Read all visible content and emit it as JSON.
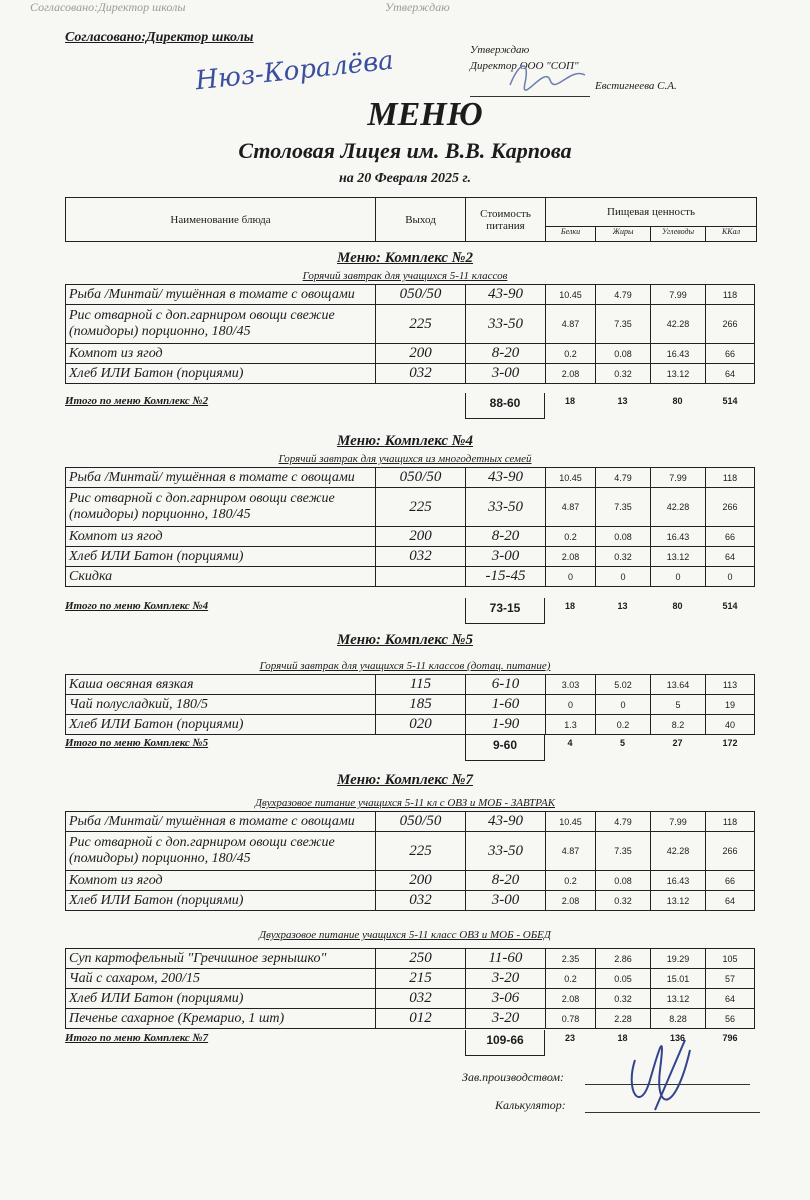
{
  "bleed": {
    "left": "Согласовано:Директор школы",
    "right": "Утверждаю"
  },
  "approval_left": "Согласовано:Директор школы",
  "approval_right": {
    "line1": "Утверждаю",
    "line2": "Директор ООО \"СОП\"",
    "name": "Евстигнеева С.А."
  },
  "signature_left": "Нюз-Коралёва",
  "title": "МЕНЮ",
  "subtitle": "Столовая Лицея им. В.В. Карпова",
  "date": "на 20 Февраля 2025 г.",
  "header": {
    "name": "Наименование блюда",
    "yield": "Выход",
    "cost": "Стоимость питания",
    "nutrition": "Пищевая ценность",
    "protein": "Белки",
    "fat": "Жиры",
    "carbs": "Углеводы",
    "kcal": "ККал"
  },
  "sections": [
    {
      "title": "Меню: Комплекс №2",
      "blocks": [
        {
          "subtitle": "Горячий завтрак для учащихся 5-11 классов",
          "rows": [
            [
              "Рыба /Минтай/ тушённая в томате с овощами",
              "050/50",
              "43-90",
              "10.45",
              "4.79",
              "7.99",
              "118"
            ],
            [
              "Рис отварной с доп.гарниром овощи свежие (помидоры) порционно, 180/45",
              "225",
              "33-50",
              "4.87",
              "7.35",
              "42.28",
              "266"
            ],
            [
              "Компот из ягод",
              "200",
              "8-20",
              "0.2",
              "0.08",
              "16.43",
              "66"
            ],
            [
              "Хлеб ИЛИ Батон (порциями)",
              "032",
              "3-00",
              "2.08",
              "0.32",
              "13.12",
              "64"
            ]
          ]
        }
      ],
      "total": {
        "label": "Итого по меню Комплекс №2",
        "cost": "88-60",
        "protein": "18",
        "fat": "13",
        "carbs": "80",
        "kcal": "514"
      }
    },
    {
      "title": "Меню: Комплекс №4",
      "blocks": [
        {
          "subtitle": "Горячий завтрак для учащихся из многодетных семей",
          "rows": [
            [
              "Рыба /Минтай/ тушённая в томате с овощами",
              "050/50",
              "43-90",
              "10.45",
              "4.79",
              "7.99",
              "118"
            ],
            [
              "Рис отварной с доп.гарниром овощи свежие (помидоры) порционно, 180/45",
              "225",
              "33-50",
              "4.87",
              "7.35",
              "42.28",
              "266"
            ],
            [
              "Компот из ягод",
              "200",
              "8-20",
              "0.2",
              "0.08",
              "16.43",
              "66"
            ],
            [
              "Хлеб ИЛИ Батон (порциями)",
              "032",
              "3-00",
              "2.08",
              "0.32",
              "13.12",
              "64"
            ],
            [
              "Скидка",
              "",
              "-15-45",
              "0",
              "0",
              "0",
              "0"
            ]
          ]
        }
      ],
      "total": {
        "label": "Итого по меню Комплекс №4",
        "cost": "73-15",
        "protein": "18",
        "fat": "13",
        "carbs": "80",
        "kcal": "514"
      }
    },
    {
      "title": "Меню: Комплекс №5",
      "blocks": [
        {
          "subtitle": "Горячий завтрак для учащихся 5-11 классов (дотац. питание)",
          "rows": [
            [
              "Каша овсяная вязкая",
              "115",
              "6-10",
              "3.03",
              "5.02",
              "13.64",
              "113"
            ],
            [
              "Чай полусладкий, 180/5",
              "185",
              "1-60",
              "0",
              "0",
              "5",
              "19"
            ],
            [
              "Хлеб ИЛИ Батон (порциями)",
              "020",
              "1-90",
              "1.3",
              "0.2",
              "8.2",
              "40"
            ]
          ]
        }
      ],
      "total": {
        "label": "Итого по меню Комплекс №5",
        "cost": "9-60",
        "protein": "4",
        "fat": "5",
        "carbs": "27",
        "kcal": "172"
      }
    },
    {
      "title": "Меню: Комплекс №7",
      "blocks": [
        {
          "subtitle": "Двухразовое питание учащихся 5-11 кл с ОВЗ и МОБ - ЗАВТРАК",
          "rows": [
            [
              "Рыба /Минтай/ тушённая в томате с овощами",
              "050/50",
              "43-90",
              "10.45",
              "4.79",
              "7.99",
              "118"
            ],
            [
              "Рис отварной с доп.гарниром овощи свежие (помидоры) порционно, 180/45",
              "225",
              "33-50",
              "4.87",
              "7.35",
              "42.28",
              "266"
            ],
            [
              "Компот из ягод",
              "200",
              "8-20",
              "0.2",
              "0.08",
              "16.43",
              "66"
            ],
            [
              "Хлеб ИЛИ Батон (порциями)",
              "032",
              "3-00",
              "2.08",
              "0.32",
              "13.12",
              "64"
            ]
          ]
        },
        {
          "subtitle": "Двухразовое питание учащихся 5-11 класс ОВЗ и МОБ - ОБЕД",
          "rows": [
            [
              "Суп картофельный \"Гречишное зернышко\"",
              "250",
              "11-60",
              "2.35",
              "2.86",
              "19.29",
              "105"
            ],
            [
              "Чай с сахаром, 200/15",
              "215",
              "3-20",
              "0.2",
              "0.05",
              "15.01",
              "57"
            ],
            [
              "Хлеб ИЛИ Батон (порциями)",
              "032",
              "3-06",
              "2.08",
              "0.32",
              "13.12",
              "64"
            ],
            [
              "Печенье сахарное (Кремарио, 1 шт)",
              "012",
              "3-20",
              "0.78",
              "2.28",
              "8.28",
              "56"
            ]
          ]
        }
      ],
      "total": {
        "label": "Итого по меню Комплекс №7",
        "cost": "109-66",
        "protein": "23",
        "fat": "18",
        "carbs": "136",
        "kcal": "796"
      }
    }
  ],
  "footer": {
    "production": "Зав.производством:",
    "calculator": "Калькулятор:"
  }
}
